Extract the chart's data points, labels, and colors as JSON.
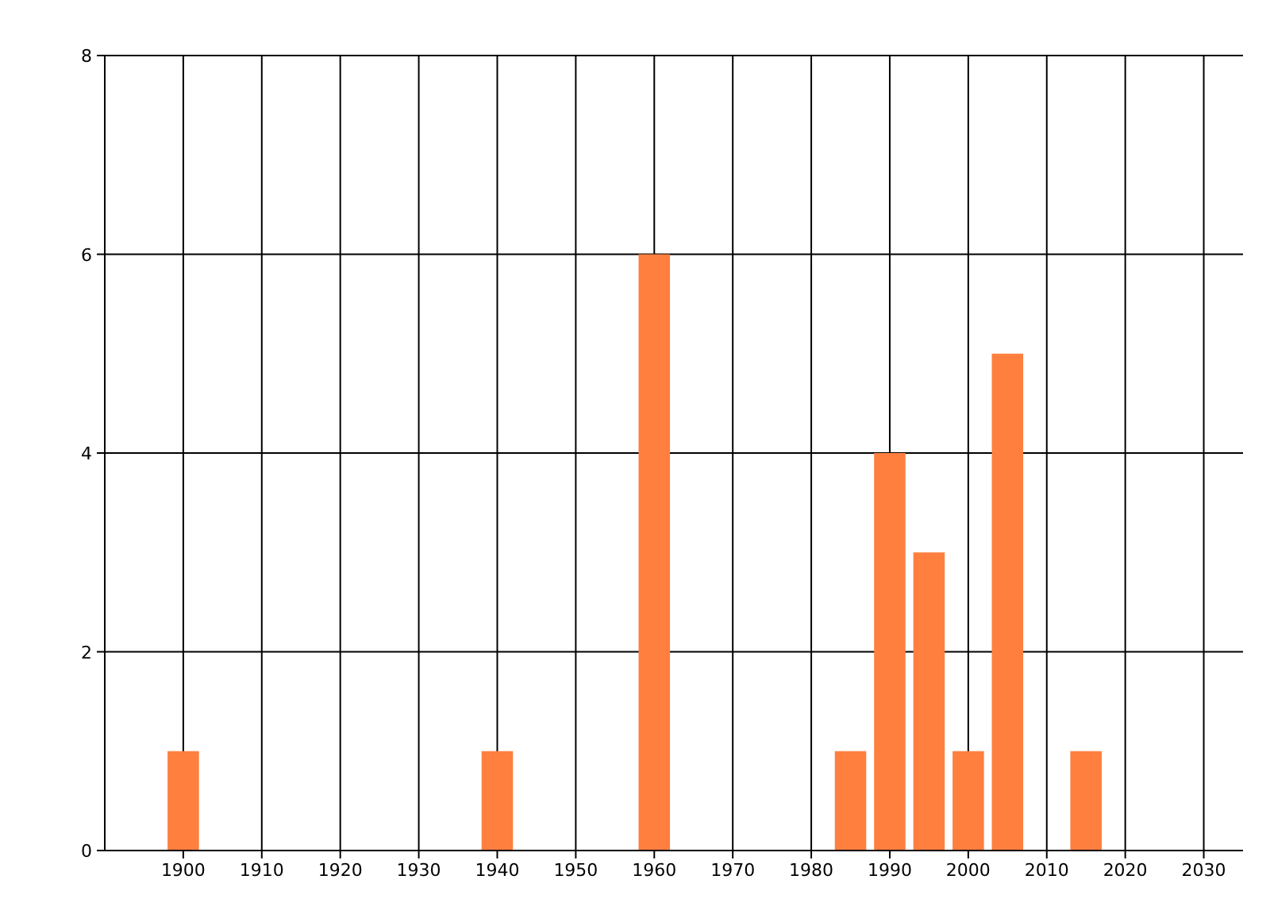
{
  "chart_data": {
    "type": "bar",
    "x": [
      1900,
      1940,
      1960,
      1985,
      1990,
      1995,
      2000,
      2005,
      2015
    ],
    "values": [
      1,
      1,
      6,
      1,
      4,
      3,
      1,
      5,
      1
    ],
    "color": "#ff7f3f",
    "xlim": [
      1890,
      2035
    ],
    "xticks": [
      1900,
      1910,
      1920,
      1930,
      1940,
      1950,
      1960,
      1970,
      1980,
      1990,
      2000,
      2010,
      2020,
      2030
    ],
    "ylim": [
      0,
      8
    ],
    "yticks": [
      0,
      2,
      4,
      6,
      8
    ],
    "grid": true
  }
}
